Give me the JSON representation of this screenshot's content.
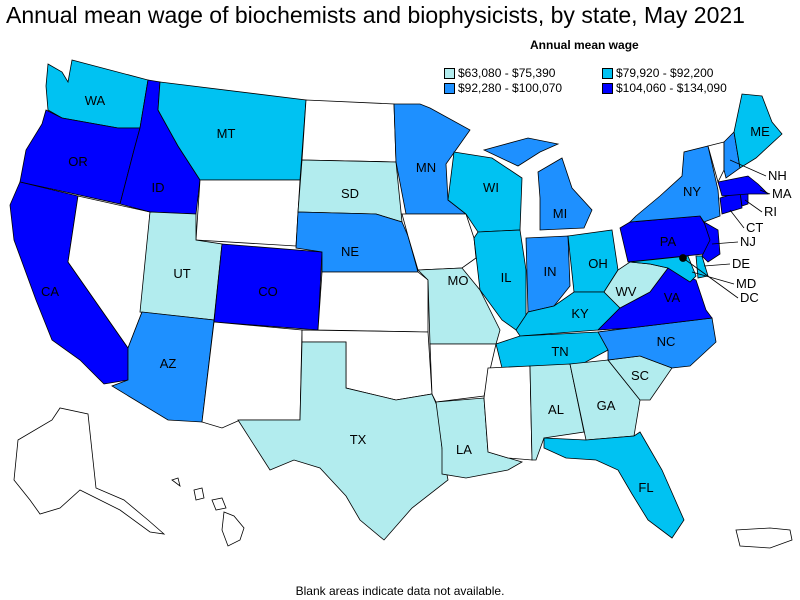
{
  "title": "Annual mean wage of biochemists and biophysicists, by state, May 2021",
  "legend": {
    "title": "Annual mean wage",
    "items": [
      {
        "label": "$63,080 - $75,390",
        "color": "#b2ecee"
      },
      {
        "label": "$79,920 - $92,200",
        "color": "#00c2f2"
      },
      {
        "label": "$92,280 - $100,070",
        "color": "#1e90ff"
      },
      {
        "label": "$104,060 - $134,090",
        "color": "#0000ff"
      }
    ]
  },
  "footnote": "Blank areas indicate data not available.",
  "colors": {
    "blank": "#ffffff",
    "border": "#000000"
  },
  "states": {
    "WA": 1,
    "OR": 3,
    "ID": 3,
    "MT": 1,
    "CA": 3,
    "NV": null,
    "UT": 0,
    "AZ": 2,
    "WY": null,
    "CO": 3,
    "NM": null,
    "ND": null,
    "SD": 0,
    "NE": 2,
    "KS": null,
    "OK": null,
    "TX": 0,
    "MN": 2,
    "IA": null,
    "MO": 0,
    "AR": null,
    "LA": 0,
    "WI": 1,
    "IL": 1,
    "MI": 2,
    "IN": 2,
    "OH": 1,
    "KY": 1,
    "TN": 1,
    "MS": null,
    "AL": 0,
    "GA": 0,
    "FL": 1,
    "SC": 0,
    "NC": 2,
    "VA": 3,
    "WV": 0,
    "MD": 1,
    "DE": 1,
    "DC": 3,
    "PA": 3,
    "NJ": 3,
    "NY": 2,
    "CT": 3,
    "RI": 3,
    "MA": 3,
    "VT": null,
    "NH": 2,
    "ME": 1,
    "AK": null,
    "HI": null,
    "PR": null
  }
}
